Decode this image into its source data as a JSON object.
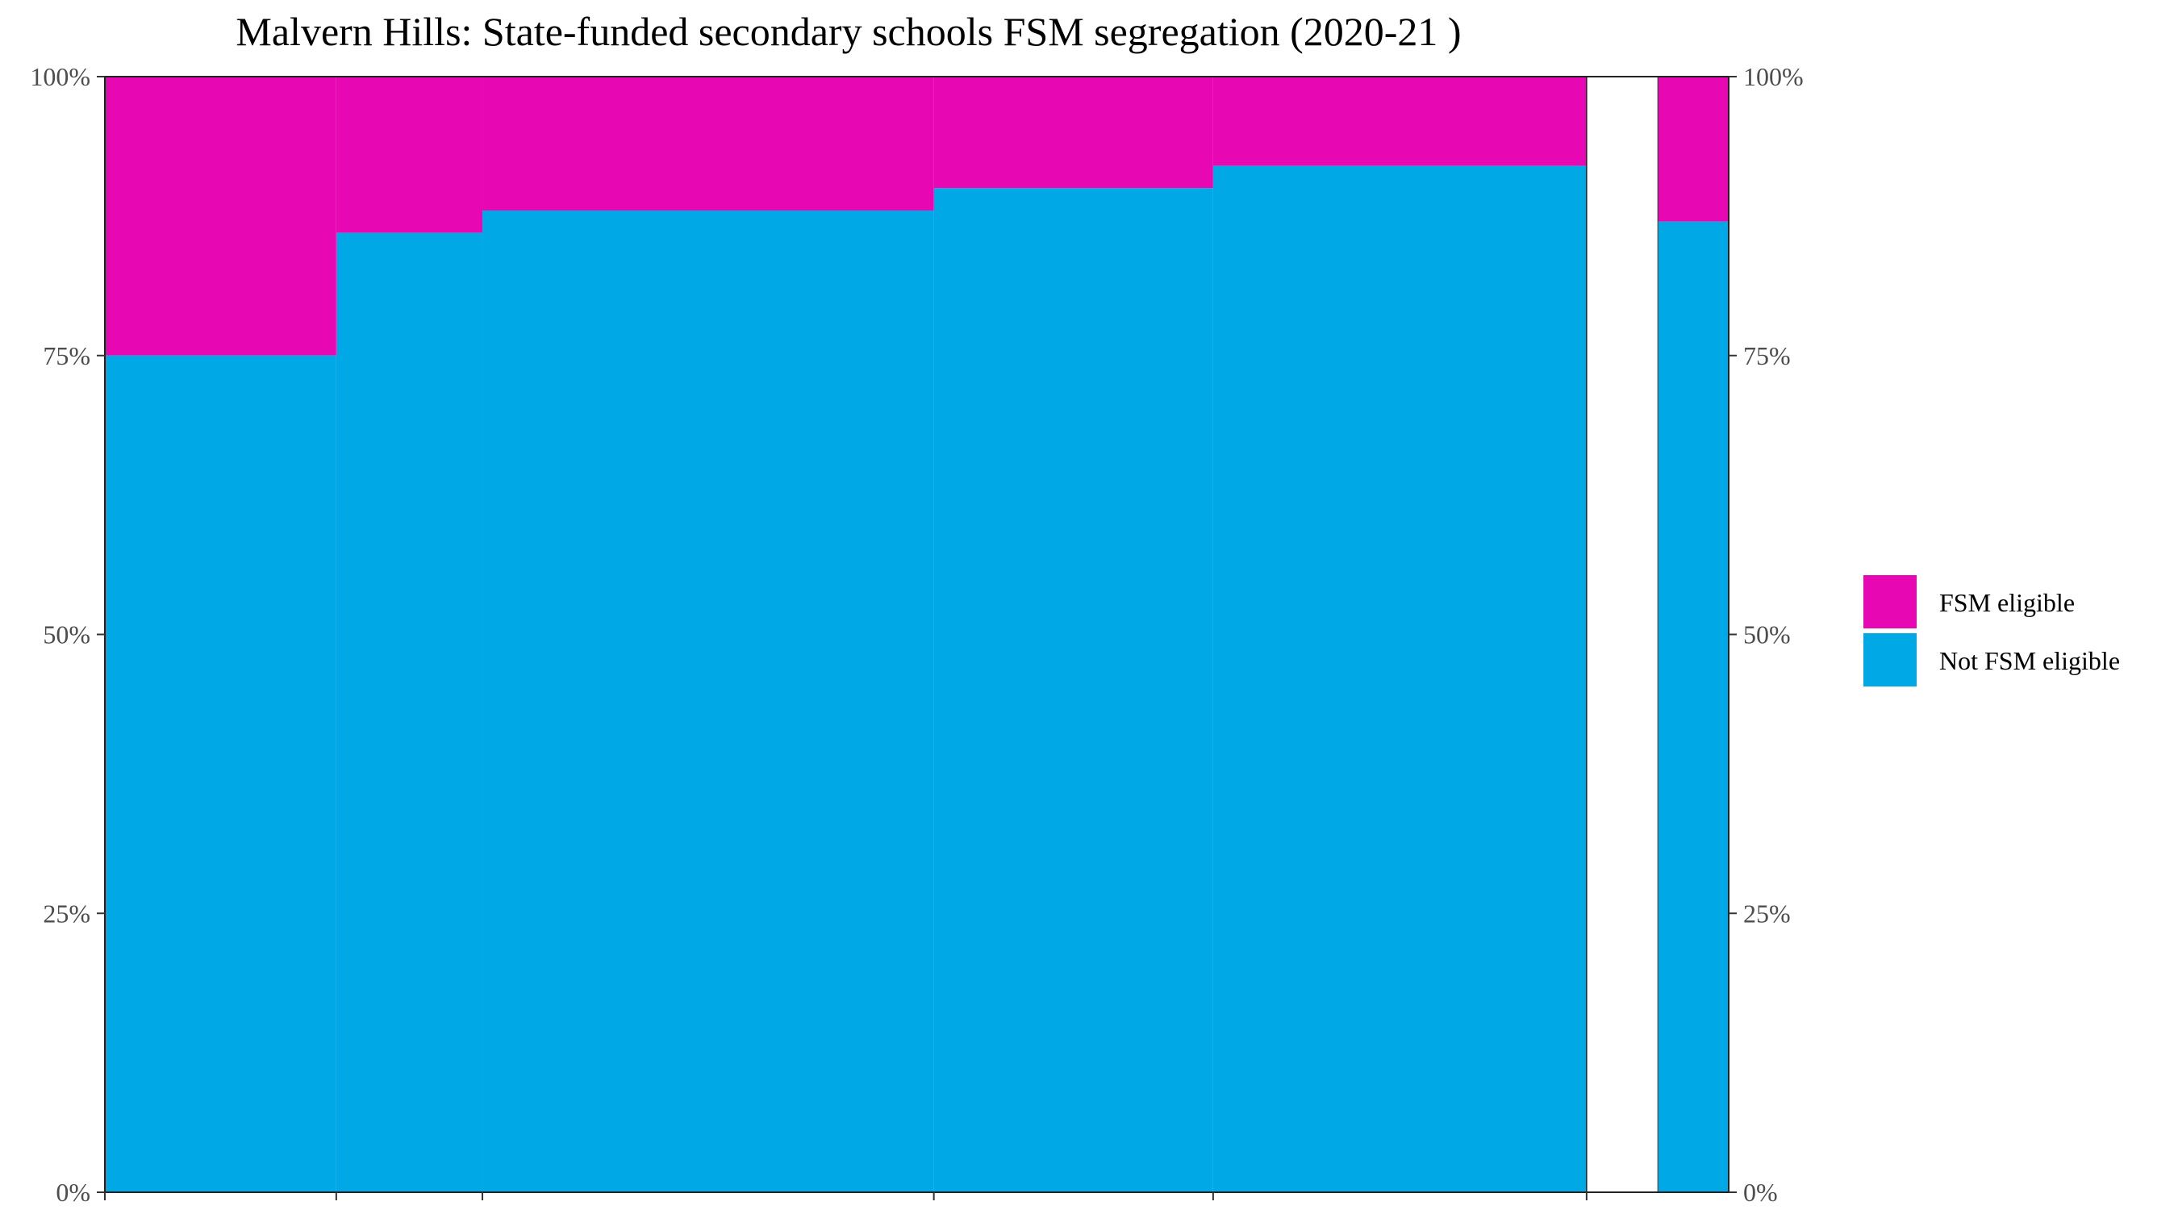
{
  "chart_data": {
    "type": "bar",
    "subtype": "marimekko (variable-width 100% stacked)",
    "title": "Malvern Hills: State-funded secondary schools FSM segregation (2020-21 )",
    "xlabel": "",
    "ylabel": "",
    "ylim": [
      0,
      100
    ],
    "y_tick_labels": [
      "0%",
      "25%",
      "50%",
      "75%",
      "100%"
    ],
    "x_tick_positions": [
      0.0,
      0.1425,
      0.2325,
      0.5105,
      0.6825,
      0.9125
    ],
    "grid": false,
    "legend_position": "right",
    "colors": {
      "FSM eligible": "#E708B3",
      "Not FSM eligible": "#00A8E6"
    },
    "series": [
      {
        "name": "FSM eligible",
        "values": [
          25,
          14,
          12,
          10,
          8,
          13
        ]
      },
      {
        "name": "Not FSM eligible",
        "values": [
          75,
          86,
          88,
          90,
          92,
          87
        ]
      }
    ],
    "schools": [
      {
        "x_start": 0.0,
        "x_end": 0.1425,
        "not_fsm": 75,
        "fsm": 25
      },
      {
        "x_start": 0.1425,
        "x_end": 0.2325,
        "not_fsm": 86,
        "fsm": 14
      },
      {
        "x_start": 0.2325,
        "x_end": 0.5105,
        "not_fsm": 88,
        "fsm": 12
      },
      {
        "x_start": 0.5105,
        "x_end": 0.6825,
        "not_fsm": 90,
        "fsm": 10
      },
      {
        "x_start": 0.6825,
        "x_end": 0.9125,
        "not_fsm": 92,
        "fsm": 8
      }
    ],
    "gap": {
      "x_start": 0.9125,
      "x_end": 0.9565
    },
    "total": {
      "x_start": 0.9565,
      "x_end": 1.0,
      "not_fsm": 87,
      "fsm": 13
    },
    "legend": [
      {
        "label": "FSM eligible",
        "color": "#E708B3"
      },
      {
        "label": "Not FSM eligible",
        "color": "#00A8E6"
      }
    ]
  }
}
